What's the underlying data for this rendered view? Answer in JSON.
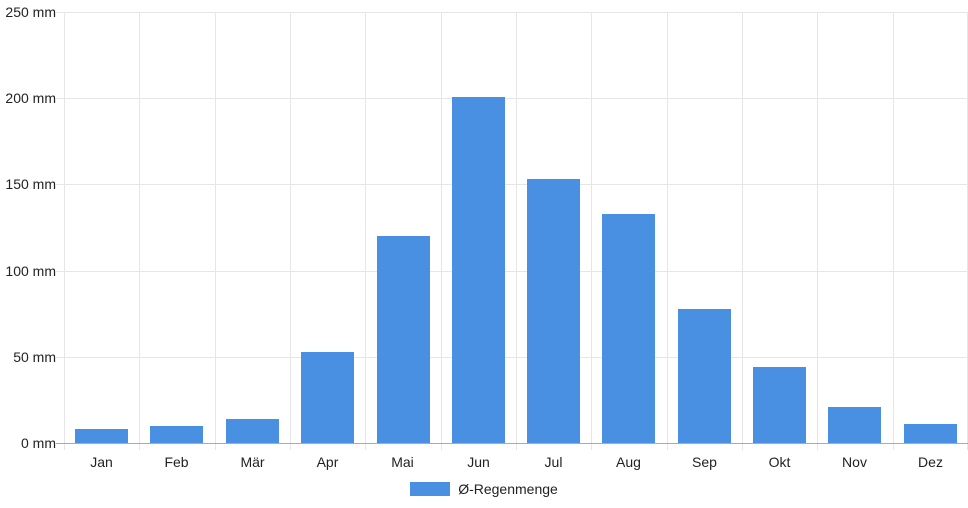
{
  "chart_data": {
    "type": "bar",
    "categories": [
      "Jan",
      "Feb",
      "Mär",
      "Apr",
      "Mai",
      "Jun",
      "Jul",
      "Aug",
      "Sep",
      "Okt",
      "Nov",
      "Dez"
    ],
    "series": [
      {
        "name": "Ø-Regenmenge",
        "values": [
          8,
          10,
          14,
          53,
          120,
          201,
          153,
          133,
          78,
          44,
          21,
          11
        ],
        "color": "#4A90E2"
      }
    ],
    "unit": "mm",
    "ylim": [
      0,
      250
    ],
    "ytick_step": 50,
    "ytick_values": [
      0,
      50,
      100,
      150,
      200,
      250
    ],
    "ytick_labels": [
      "0 mm",
      "50 mm",
      "100 mm",
      "150 mm",
      "200 mm",
      "250 mm"
    ],
    "xlabel": "",
    "ylabel": "",
    "grid": true,
    "legend_position": "bottom"
  },
  "legend": {
    "label": "Ø-Regenmenge",
    "swatch_color": "#4A90E2"
  },
  "colors": {
    "bar": "#4A90E2",
    "gridline": "#e6e6e6",
    "axis_line": "#ababab",
    "text": "#222222",
    "background": "#ffffff"
  }
}
